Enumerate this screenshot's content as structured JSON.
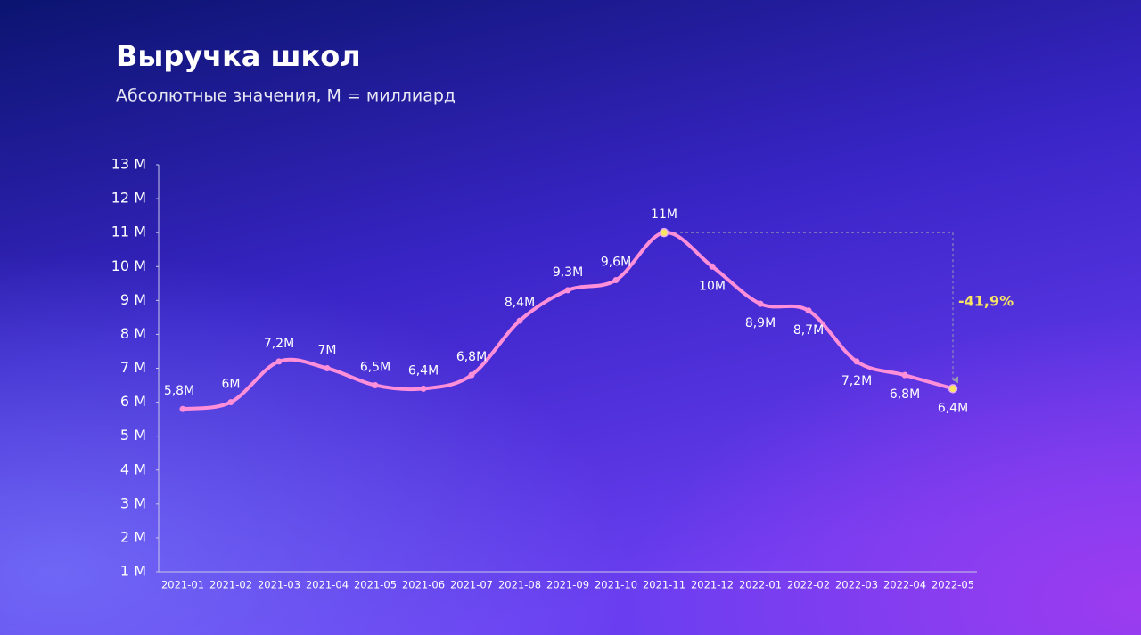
{
  "chart_data": {
    "type": "line",
    "title": "Выручка школ",
    "subtitle": "Абсолютные значения, M = миллиард",
    "categories": [
      "2021-01",
      "2021-02",
      "2021-03",
      "2021-04",
      "2021-05",
      "2021-06",
      "2021-07",
      "2021-08",
      "2021-09",
      "2021-10",
      "2021-11",
      "2021-12",
      "2022-01",
      "2022-02",
      "2022-03",
      "2022-04",
      "2022-05"
    ],
    "series": [
      {
        "color": "#ff8fd8",
        "values": [
          5.8,
          6,
          7.2,
          7,
          6.5,
          6.4,
          6.8,
          8.4,
          9.3,
          9.6,
          11,
          10,
          8.9,
          8.7,
          7.2,
          6.8,
          6.4
        ],
        "value_labels": [
          "5,8M",
          "6M",
          "7,2M",
          "7M",
          "6,5M",
          "6,4M",
          "6,8M",
          "8,4M",
          "9,3M",
          "9,6M",
          "11M",
          "10M",
          "8,9M",
          "8,7M",
          "7,2M",
          "6,8M",
          "6,4M"
        ]
      }
    ],
    "highlight_color": "#f7e463",
    "annotation": "-41,9%",
    "ylim": [
      1,
      13
    ],
    "yticks": [
      {
        "value": 1,
        "label": "1 M"
      },
      {
        "value": 2,
        "label": "2 M"
      },
      {
        "value": 3,
        "label": "3 M"
      },
      {
        "value": 4,
        "label": "4 M"
      },
      {
        "value": 5,
        "label": "5 M"
      },
      {
        "value": 6,
        "label": "6 M"
      },
      {
        "value": 7,
        "label": "7 M"
      },
      {
        "value": 8,
        "label": "8 M"
      },
      {
        "value": 9,
        "label": "9 M"
      },
      {
        "value": 10,
        "label": "10 M"
      },
      {
        "value": 11,
        "label": "11 M"
      },
      {
        "value": 12,
        "label": "12 M"
      },
      {
        "value": 13,
        "label": "13 M"
      }
    ]
  }
}
